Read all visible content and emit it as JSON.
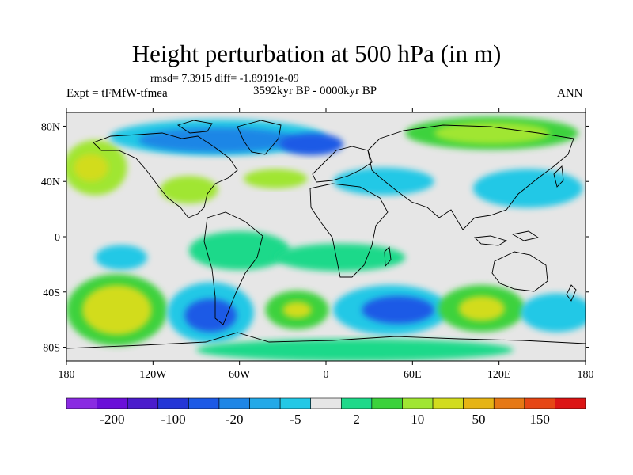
{
  "title": "Height perturbation at 500 hPa (in m)",
  "stats_line": "rmsd= 7.3915 diff= -1.89191e-09",
  "experiment": "Expt = tFMfW-tfmea",
  "period": "3592kyr BP - 0000kyr BP",
  "season": "ANN",
  "lon_ticks": [
    {
      "value": -180,
      "label": "180"
    },
    {
      "value": -120,
      "label": "120W"
    },
    {
      "value": -60,
      "label": "60W"
    },
    {
      "value": 0,
      "label": "0"
    },
    {
      "value": 60,
      "label": "60E"
    },
    {
      "value": 120,
      "label": "120E"
    },
    {
      "value": 180,
      "label": "180"
    }
  ],
  "lat_ticks": [
    {
      "value": 80,
      "label": "80N"
    },
    {
      "value": 40,
      "label": "40N"
    },
    {
      "value": 0,
      "label": "0"
    },
    {
      "value": -40,
      "label": "40S"
    },
    {
      "value": -80,
      "label": "80S"
    }
  ],
  "colorbar": {
    "colors": [
      "#8a2be2",
      "#6a0fd8",
      "#4b1ccc",
      "#2436d6",
      "#1c5ae6",
      "#1e86e6",
      "#23a9e8",
      "#23c8e6",
      "#e6e6e6",
      "#1fd98a",
      "#3cd23c",
      "#a0e632",
      "#d2dc1e",
      "#e6b414",
      "#e67814",
      "#e64614",
      "#dc1414"
    ],
    "labels": [
      "-200",
      "-100",
      "-20",
      "-5",
      "2",
      "10",
      "50",
      "150"
    ]
  },
  "map_blobs": [
    {
      "lon": -160,
      "lat": 50,
      "rx": 22,
      "ry": 20,
      "color": "#a0e632"
    },
    {
      "lon": -163,
      "lat": 50,
      "rx": 12,
      "ry": 10,
      "color": "#d2dc1e"
    },
    {
      "lon": -75,
      "lat": 72,
      "rx": 75,
      "ry": 13,
      "color": "#23c8e6"
    },
    {
      "lon": -75,
      "lat": 70,
      "rx": 55,
      "ry": 9,
      "color": "#1e86e6"
    },
    {
      "lon": -10,
      "lat": 67,
      "rx": 22,
      "ry": 8,
      "color": "#1c5ae6"
    },
    {
      "lon": -95,
      "lat": 34,
      "rx": 20,
      "ry": 10,
      "color": "#a0e632"
    },
    {
      "lon": -35,
      "lat": 42,
      "rx": 22,
      "ry": 7,
      "color": "#a0e632"
    },
    {
      "lon": 40,
      "lat": 40,
      "rx": 35,
      "ry": 10,
      "color": "#23c8e6"
    },
    {
      "lon": 115,
      "lat": 75,
      "rx": 60,
      "ry": 12,
      "color": "#3cd23c"
    },
    {
      "lon": 115,
      "lat": 75,
      "rx": 40,
      "ry": 8,
      "color": "#a0e632"
    },
    {
      "lon": 140,
      "lat": 35,
      "rx": 38,
      "ry": 14,
      "color": "#23c8e6"
    },
    {
      "lon": -142,
      "lat": -15,
      "rx": 18,
      "ry": 9,
      "color": "#23c8e6"
    },
    {
      "lon": -60,
      "lat": -10,
      "rx": 35,
      "ry": 14,
      "color": "#1fd98a"
    },
    {
      "lon": 10,
      "lat": -15,
      "rx": 45,
      "ry": 10,
      "color": "#1fd98a"
    },
    {
      "lon": -145,
      "lat": -53,
      "rx": 35,
      "ry": 26,
      "color": "#3cd23c"
    },
    {
      "lon": -145,
      "lat": -53,
      "rx": 24,
      "ry": 18,
      "color": "#d2dc1e"
    },
    {
      "lon": -80,
      "lat": -55,
      "rx": 30,
      "ry": 22,
      "color": "#23c8e6"
    },
    {
      "lon": -80,
      "lat": -57,
      "rx": 18,
      "ry": 12,
      "color": "#1c5ae6"
    },
    {
      "lon": -20,
      "lat": -53,
      "rx": 22,
      "ry": 14,
      "color": "#3cd23c"
    },
    {
      "lon": -20,
      "lat": -53,
      "rx": 10,
      "ry": 6,
      "color": "#d2dc1e"
    },
    {
      "lon": 45,
      "lat": -53,
      "rx": 40,
      "ry": 18,
      "color": "#23c8e6"
    },
    {
      "lon": 50,
      "lat": -53,
      "rx": 25,
      "ry": 10,
      "color": "#1c5ae6"
    },
    {
      "lon": 108,
      "lat": -52,
      "rx": 30,
      "ry": 17,
      "color": "#3cd23c"
    },
    {
      "lon": 108,
      "lat": -52,
      "rx": 16,
      "ry": 9,
      "color": "#d2dc1e"
    },
    {
      "lon": 160,
      "lat": -55,
      "rx": 25,
      "ry": 14,
      "color": "#23c8e6"
    },
    {
      "lon": 20,
      "lat": -82,
      "rx": 110,
      "ry": 8,
      "color": "#1fd98a"
    }
  ]
}
